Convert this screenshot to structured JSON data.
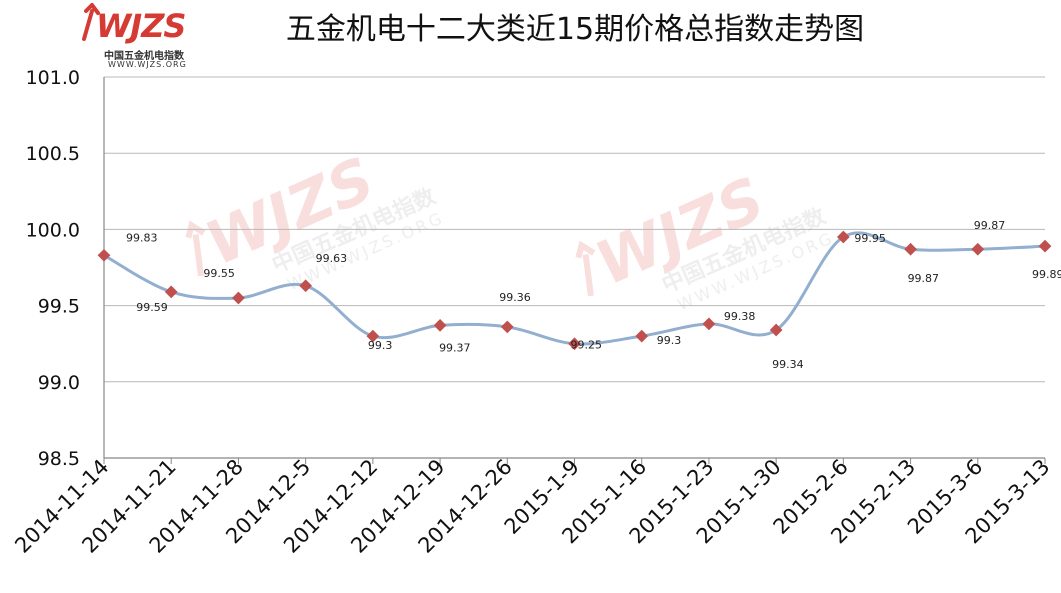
{
  "title": "五金机电十二大类近15期价格总指数走势图",
  "logo": {
    "brand": "WJZS",
    "cn": "中国五金机电指数",
    "url": "WWW.WJZS.ORG"
  },
  "watermark": {
    "brand": "WJZS",
    "cn": "中国五金机电指数",
    "url": "WWW.WJZS.ORG"
  },
  "colors": {
    "line": "#93afd0",
    "marker": "#c0504d",
    "grid": "#b8b8b8",
    "axis": "#888888",
    "logo": "#d63a34"
  },
  "chart_data": {
    "type": "line",
    "title": "五金机电十二大类近15期价格总指数走势图",
    "xlabel": "",
    "ylabel": "",
    "categories": [
      "2014-11-14",
      "2014-11-21",
      "2014-11-28",
      "2014-12-5",
      "2014-12-12",
      "2014-12-19",
      "2014-12-26",
      "2015-1-9",
      "2015-1-16",
      "2015-1-23",
      "2015-1-30",
      "2015-2-6",
      "2015-2-13",
      "2015-3-6",
      "2015-3-13"
    ],
    "values": [
      99.83,
      99.59,
      99.55,
      99.63,
      99.3,
      99.37,
      99.36,
      99.25,
      99.3,
      99.38,
      99.34,
      99.95,
      99.87,
      99.87,
      99.89
    ],
    "labels": [
      "99.83",
      "99.59",
      "99.55",
      "99.63",
      "99.3",
      "99.37",
      "99.36",
      "99.25",
      "99.3",
      "99.38",
      "99.34",
      "99.95",
      "99.87",
      "99.87",
      "99.89"
    ],
    "ylim": [
      98.5,
      101.0
    ],
    "yticks": [
      "98.5",
      "99.0",
      "99.5",
      "100.0",
      "100.5",
      "101.0"
    ],
    "grid": true,
    "legend": "none",
    "smooth": true
  }
}
